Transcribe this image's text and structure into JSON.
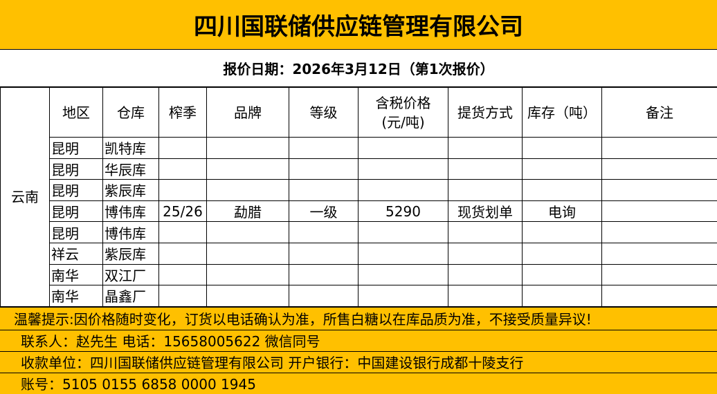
{
  "title": "四川国联储供应链管理有限公司",
  "quote_date": "报价日期：2026年3月12日（第1次报价）",
  "province": "云南",
  "headers": [
    "地区",
    "仓库",
    "榨季",
    "品牌",
    "等级",
    "含税价格\n(元/吨)",
    "提货方式",
    "库存（吨）",
    "备注"
  ],
  "rows": [
    [
      "昆明",
      "凯特库",
      "",
      "",
      "",
      "",
      "",
      "",
      ""
    ],
    [
      "昆明",
      "华辰库",
      "",
      "",
      "",
      "",
      "",
      "",
      ""
    ],
    [
      "昆明",
      "紫辰库",
      "",
      "",
      "",
      "",
      "",
      "",
      ""
    ],
    [
      "昆明",
      "博伟库",
      "25/26",
      "勐腊",
      "一级",
      "5290",
      "现货划单",
      "电询",
      ""
    ],
    [
      "昆明",
      "博伟库",
      "",
      "",
      "",
      "",
      "",
      "",
      ""
    ],
    [
      "祥云",
      "紫辰库",
      "",
      "",
      "",
      "",
      "",
      "",
      ""
    ],
    [
      "南华",
      "双江厂",
      "",
      "",
      "",
      "",
      "",
      "",
      ""
    ],
    [
      "南华",
      "晶鑫厂",
      "",
      "",
      "",
      "",
      "",
      "",
      ""
    ]
  ],
  "footer": {
    "notice": "温馨提示:因价格随时变化，订货以电话确认为准，所售白糖以在库品质为准，不接受质量异议!",
    "contact": "联系人：赵先生  电话：15658005622  微信同号",
    "payee": "收款单位：四川国联储供应链管理有限公司  开户银行：中国建设银行成都十陵支行",
    "account": "账号：5105 0155 6858 0000 1945"
  },
  "colors": {
    "accent": "#FFC000"
  }
}
